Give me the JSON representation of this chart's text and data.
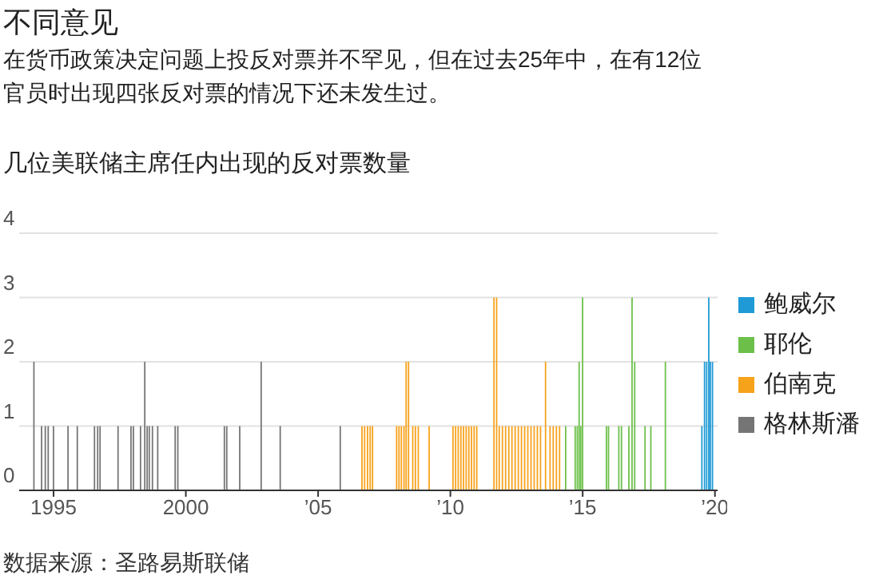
{
  "chart_data": {
    "type": "bar",
    "title": "不同意见",
    "subtitle": "在货币政策决定问题上投反对票并不罕见，但在过去25年中，在有12位官员时出现四张反对票的情况下还未发生过。",
    "ylabel": "几位美联储主席任内出现的反对票数量",
    "annotations": [
      "数据来源：圣路易斯联储"
    ],
    "series": [
      {
        "name": "鲍威尔",
        "color": "#1f9ad6",
        "x": [
          2019.51,
          2019.61,
          2019.69,
          2019.77,
          2019.83,
          2019.91
        ],
        "values": [
          1,
          2,
          2,
          3,
          2,
          2
        ]
      },
      {
        "name": "耶伦",
        "color": "#6cc04a",
        "x": [
          2014.36,
          2014.72,
          2014.8,
          2014.87,
          2014.93,
          2015.0,
          2015.9,
          2015.98,
          2016.37,
          2016.47,
          2016.75,
          2016.87,
          2016.97,
          2017.36,
          2017.58,
          2018.13
        ],
        "values": [
          1,
          1,
          1,
          2,
          1,
          3,
          1,
          1,
          1,
          1,
          1,
          3,
          2,
          1,
          1,
          2
        ]
      },
      {
        "name": "伯南克",
        "color": "#f7a21b",
        "x": [
          2006.66,
          2006.76,
          2006.87,
          2006.97,
          2007.06,
          2007.97,
          2008.06,
          2008.15,
          2008.25,
          2008.33,
          2008.42,
          2008.58,
          2008.68,
          2008.79,
          2009.2,
          2010.1,
          2010.2,
          2010.3,
          2010.4,
          2010.5,
          2010.6,
          2010.7,
          2010.8,
          2010.9,
          2011.0,
          2011.65,
          2011.75,
          2011.85,
          2011.97,
          2012.09,
          2012.21,
          2012.33,
          2012.45,
          2012.57,
          2012.69,
          2012.81,
          2012.93,
          2013.05,
          2013.17,
          2013.29,
          2013.41,
          2013.6,
          2013.77,
          2013.89,
          2014.01,
          2014.13
        ],
        "values": [
          1,
          1,
          1,
          1,
          1,
          1,
          1,
          1,
          1,
          2,
          2,
          1,
          1,
          1,
          1,
          1,
          1,
          1,
          1,
          1,
          1,
          1,
          1,
          1,
          1,
          3,
          3,
          1,
          1,
          1,
          1,
          1,
          1,
          1,
          1,
          1,
          1,
          1,
          1,
          1,
          1,
          2,
          1,
          1,
          1,
          1
        ]
      },
      {
        "name": "格林斯潘",
        "color": "#757575",
        "x": [
          1994.26,
          1994.55,
          1994.69,
          1994.8,
          1995.0,
          1995.55,
          1995.9,
          1996.55,
          1996.67,
          1996.76,
          1997.44,
          1997.93,
          1998.02,
          1998.29,
          1998.45,
          1998.54,
          1998.62,
          1998.74,
          1998.94,
          1999.6,
          1999.7,
          2001.46,
          2001.55,
          2002.04,
          2002.85,
          2003.57,
          2005.84
        ],
        "values": [
          2,
          1,
          1,
          1,
          1,
          1,
          1,
          1,
          1,
          1,
          1,
          1,
          1,
          1,
          2,
          1,
          1,
          1,
          1,
          1,
          1,
          1,
          1,
          1,
          2,
          1,
          1
        ]
      }
    ],
    "xlim": [
      1993.7,
      2020.1
    ],
    "xticks": [
      1995,
      2000,
      {
        "value": 2005,
        "label": "’05"
      },
      {
        "value": 2010,
        "label": "’10"
      },
      {
        "value": 2015,
        "label": "’15"
      },
      {
        "value": 2020,
        "label": "’20"
      }
    ],
    "ylim": [
      0,
      4
    ],
    "yticks": [
      0,
      1,
      2,
      3,
      4
    ],
    "grid": "y",
    "legend": "right"
  }
}
